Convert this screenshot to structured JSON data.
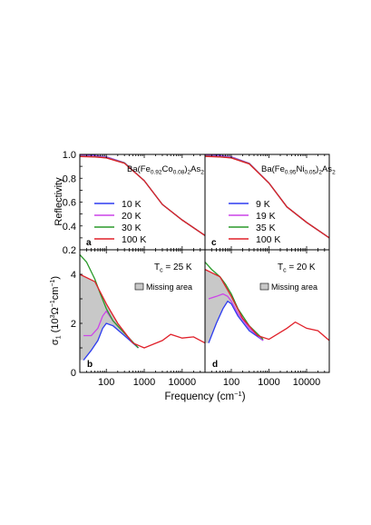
{
  "figure": {
    "xlabel": "Frequency (cm",
    "xlabel_sup": "−1",
    "xlabel_end": ")",
    "ylabel_top": "Reflectivity",
    "ylabel_bottom_parts": [
      "σ",
      "1",
      " (10",
      "3",
      "Ω",
      "−1",
      "cm",
      "−1",
      ")"
    ]
  },
  "panels": {
    "a": {
      "letter": "a",
      "compound": [
        "Ba(Fe",
        "0.92",
        "Co",
        "0.08",
        ")",
        "2",
        "As",
        "2"
      ]
    },
    "b": {
      "letter": "b",
      "tc_text": [
        "T",
        "c",
        " = 25 K"
      ],
      "missing_label": "Missing area"
    },
    "c": {
      "letter": "c",
      "compound": [
        "Ba(Fe",
        "0.95",
        "Ni",
        "0.05",
        ")",
        "2",
        "As",
        "2"
      ]
    },
    "d": {
      "letter": "d",
      "tc_text": [
        "T",
        "c",
        " = 20 K"
      ],
      "missing_label": "Missing area"
    }
  },
  "legends": {
    "a": [
      "10 K",
      "20 K",
      "30 K",
      "100 K"
    ],
    "c": [
      "9 K",
      "19 K",
      "35 K",
      "100 K"
    ]
  },
  "colors": {
    "blue": "#2d3cf0",
    "magenta": "#cc44e8",
    "green": "#2a9a2a",
    "red": "#e0202a",
    "missing_fill": "#c8c8c8"
  },
  "chart_data": [
    {
      "panel": "a",
      "type": "line",
      "xscale": "log",
      "xlim": [
        20,
        40000
      ],
      "ylim": [
        0.2,
        1.0
      ],
      "xticks": [],
      "yticks": [
        "0.2",
        "0.4",
        "0.6",
        "0.8",
        "1.0"
      ],
      "series": [
        {
          "name": "10 K",
          "x": [
            20,
            50,
            100,
            300,
            1000,
            3000,
            10000,
            40000
          ],
          "y": [
            0.995,
            0.99,
            0.98,
            0.93,
            0.78,
            0.58,
            0.45,
            0.32
          ]
        },
        {
          "name": "20 K",
          "x": [
            20,
            50,
            100,
            300,
            1000,
            3000,
            10000,
            40000
          ],
          "y": [
            0.993,
            0.987,
            0.978,
            0.93,
            0.78,
            0.58,
            0.45,
            0.32
          ]
        },
        {
          "name": "30 K",
          "x": [
            20,
            50,
            100,
            300,
            1000,
            3000,
            10000,
            40000
          ],
          "y": [
            0.985,
            0.98,
            0.972,
            0.928,
            0.78,
            0.58,
            0.45,
            0.32
          ]
        },
        {
          "name": "100 K",
          "x": [
            20,
            50,
            100,
            300,
            1000,
            3000,
            10000,
            40000
          ],
          "y": [
            0.982,
            0.978,
            0.97,
            0.925,
            0.78,
            0.58,
            0.45,
            0.32
          ]
        }
      ]
    },
    {
      "panel": "b",
      "type": "line",
      "xscale": "log",
      "xlim": [
        20,
        40000
      ],
      "ylim": [
        0,
        5
      ],
      "xticks": [
        "100",
        "1000",
        "10000"
      ],
      "yticks": [
        "0",
        "2",
        "4"
      ],
      "series": [
        {
          "name": "10 K",
          "x": [
            25,
            40,
            60,
            80,
            100,
            150,
            300,
            700
          ],
          "y": [
            0.5,
            0.9,
            1.3,
            1.8,
            2.0,
            1.9,
            1.5,
            1.0
          ]
        },
        {
          "name": "20 K",
          "x": [
            25,
            40,
            60,
            80,
            100,
            150,
            300,
            700
          ],
          "y": [
            1.5,
            1.5,
            1.8,
            2.3,
            2.5,
            2.1,
            1.6,
            1.0
          ]
        },
        {
          "name": "30 K",
          "x": [
            20,
            30,
            50,
            70,
            100,
            150,
            300,
            700
          ],
          "y": [
            4.8,
            4.5,
            3.8,
            3.2,
            2.6,
            2.1,
            1.6,
            1.0
          ]
        },
        {
          "name": "100 K",
          "x": [
            20,
            50,
            100,
            200,
            500,
            1000,
            3000,
            5000,
            10000,
            20000,
            40000
          ],
          "y": [
            4.0,
            3.7,
            2.8,
            2.0,
            1.2,
            1.0,
            1.3,
            1.55,
            1.4,
            1.45,
            1.2
          ]
        }
      ]
    },
    {
      "panel": "c",
      "type": "line",
      "xscale": "log",
      "xlim": [
        20,
        40000
      ],
      "ylim": [
        0.2,
        1.0
      ],
      "xticks": [],
      "yticks": [],
      "series": [
        {
          "name": "9 K",
          "x": [
            20,
            50,
            100,
            300,
            1000,
            3000,
            10000,
            40000
          ],
          "y": [
            0.996,
            0.99,
            0.98,
            0.925,
            0.76,
            0.56,
            0.43,
            0.3
          ]
        },
        {
          "name": "19 K",
          "x": [
            20,
            50,
            100,
            300,
            1000,
            3000,
            10000,
            40000
          ],
          "y": [
            0.994,
            0.988,
            0.978,
            0.925,
            0.76,
            0.56,
            0.43,
            0.3
          ]
        },
        {
          "name": "35 K",
          "x": [
            20,
            50,
            100,
            300,
            1000,
            3000,
            10000,
            40000
          ],
          "y": [
            0.986,
            0.98,
            0.972,
            0.922,
            0.76,
            0.56,
            0.43,
            0.3
          ]
        },
        {
          "name": "100 K",
          "x": [
            20,
            50,
            100,
            300,
            1000,
            3000,
            10000,
            40000
          ],
          "y": [
            0.983,
            0.978,
            0.97,
            0.92,
            0.76,
            0.56,
            0.43,
            0.3
          ]
        }
      ]
    },
    {
      "panel": "d",
      "type": "line",
      "xscale": "log",
      "xlim": [
        20,
        40000
      ],
      "ylim": [
        0,
        5
      ],
      "xticks": [
        "100",
        "1000",
        "10000"
      ],
      "yticks": [],
      "series": [
        {
          "name": "9 K",
          "x": [
            25,
            40,
            60,
            80,
            100,
            150,
            300,
            700
          ],
          "y": [
            1.2,
            2.0,
            2.6,
            2.9,
            2.8,
            2.3,
            1.7,
            1.3
          ]
        },
        {
          "name": "19 K",
          "x": [
            25,
            40,
            60,
            80,
            100,
            150,
            300,
            700
          ],
          "y": [
            3.0,
            3.1,
            3.2,
            3.1,
            2.9,
            2.4,
            1.8,
            1.3
          ]
        },
        {
          "name": "35 K",
          "x": [
            20,
            30,
            50,
            70,
            100,
            150,
            300,
            700
          ],
          "y": [
            4.5,
            4.2,
            3.9,
            3.6,
            3.2,
            2.6,
            1.9,
            1.35
          ]
        },
        {
          "name": "100 K",
          "x": [
            20,
            50,
            100,
            200,
            500,
            1000,
            3000,
            5000,
            10000,
            20000,
            40000
          ],
          "y": [
            4.2,
            3.9,
            3.1,
            2.2,
            1.5,
            1.35,
            1.8,
            2.05,
            1.8,
            1.7,
            1.3
          ]
        }
      ]
    }
  ]
}
